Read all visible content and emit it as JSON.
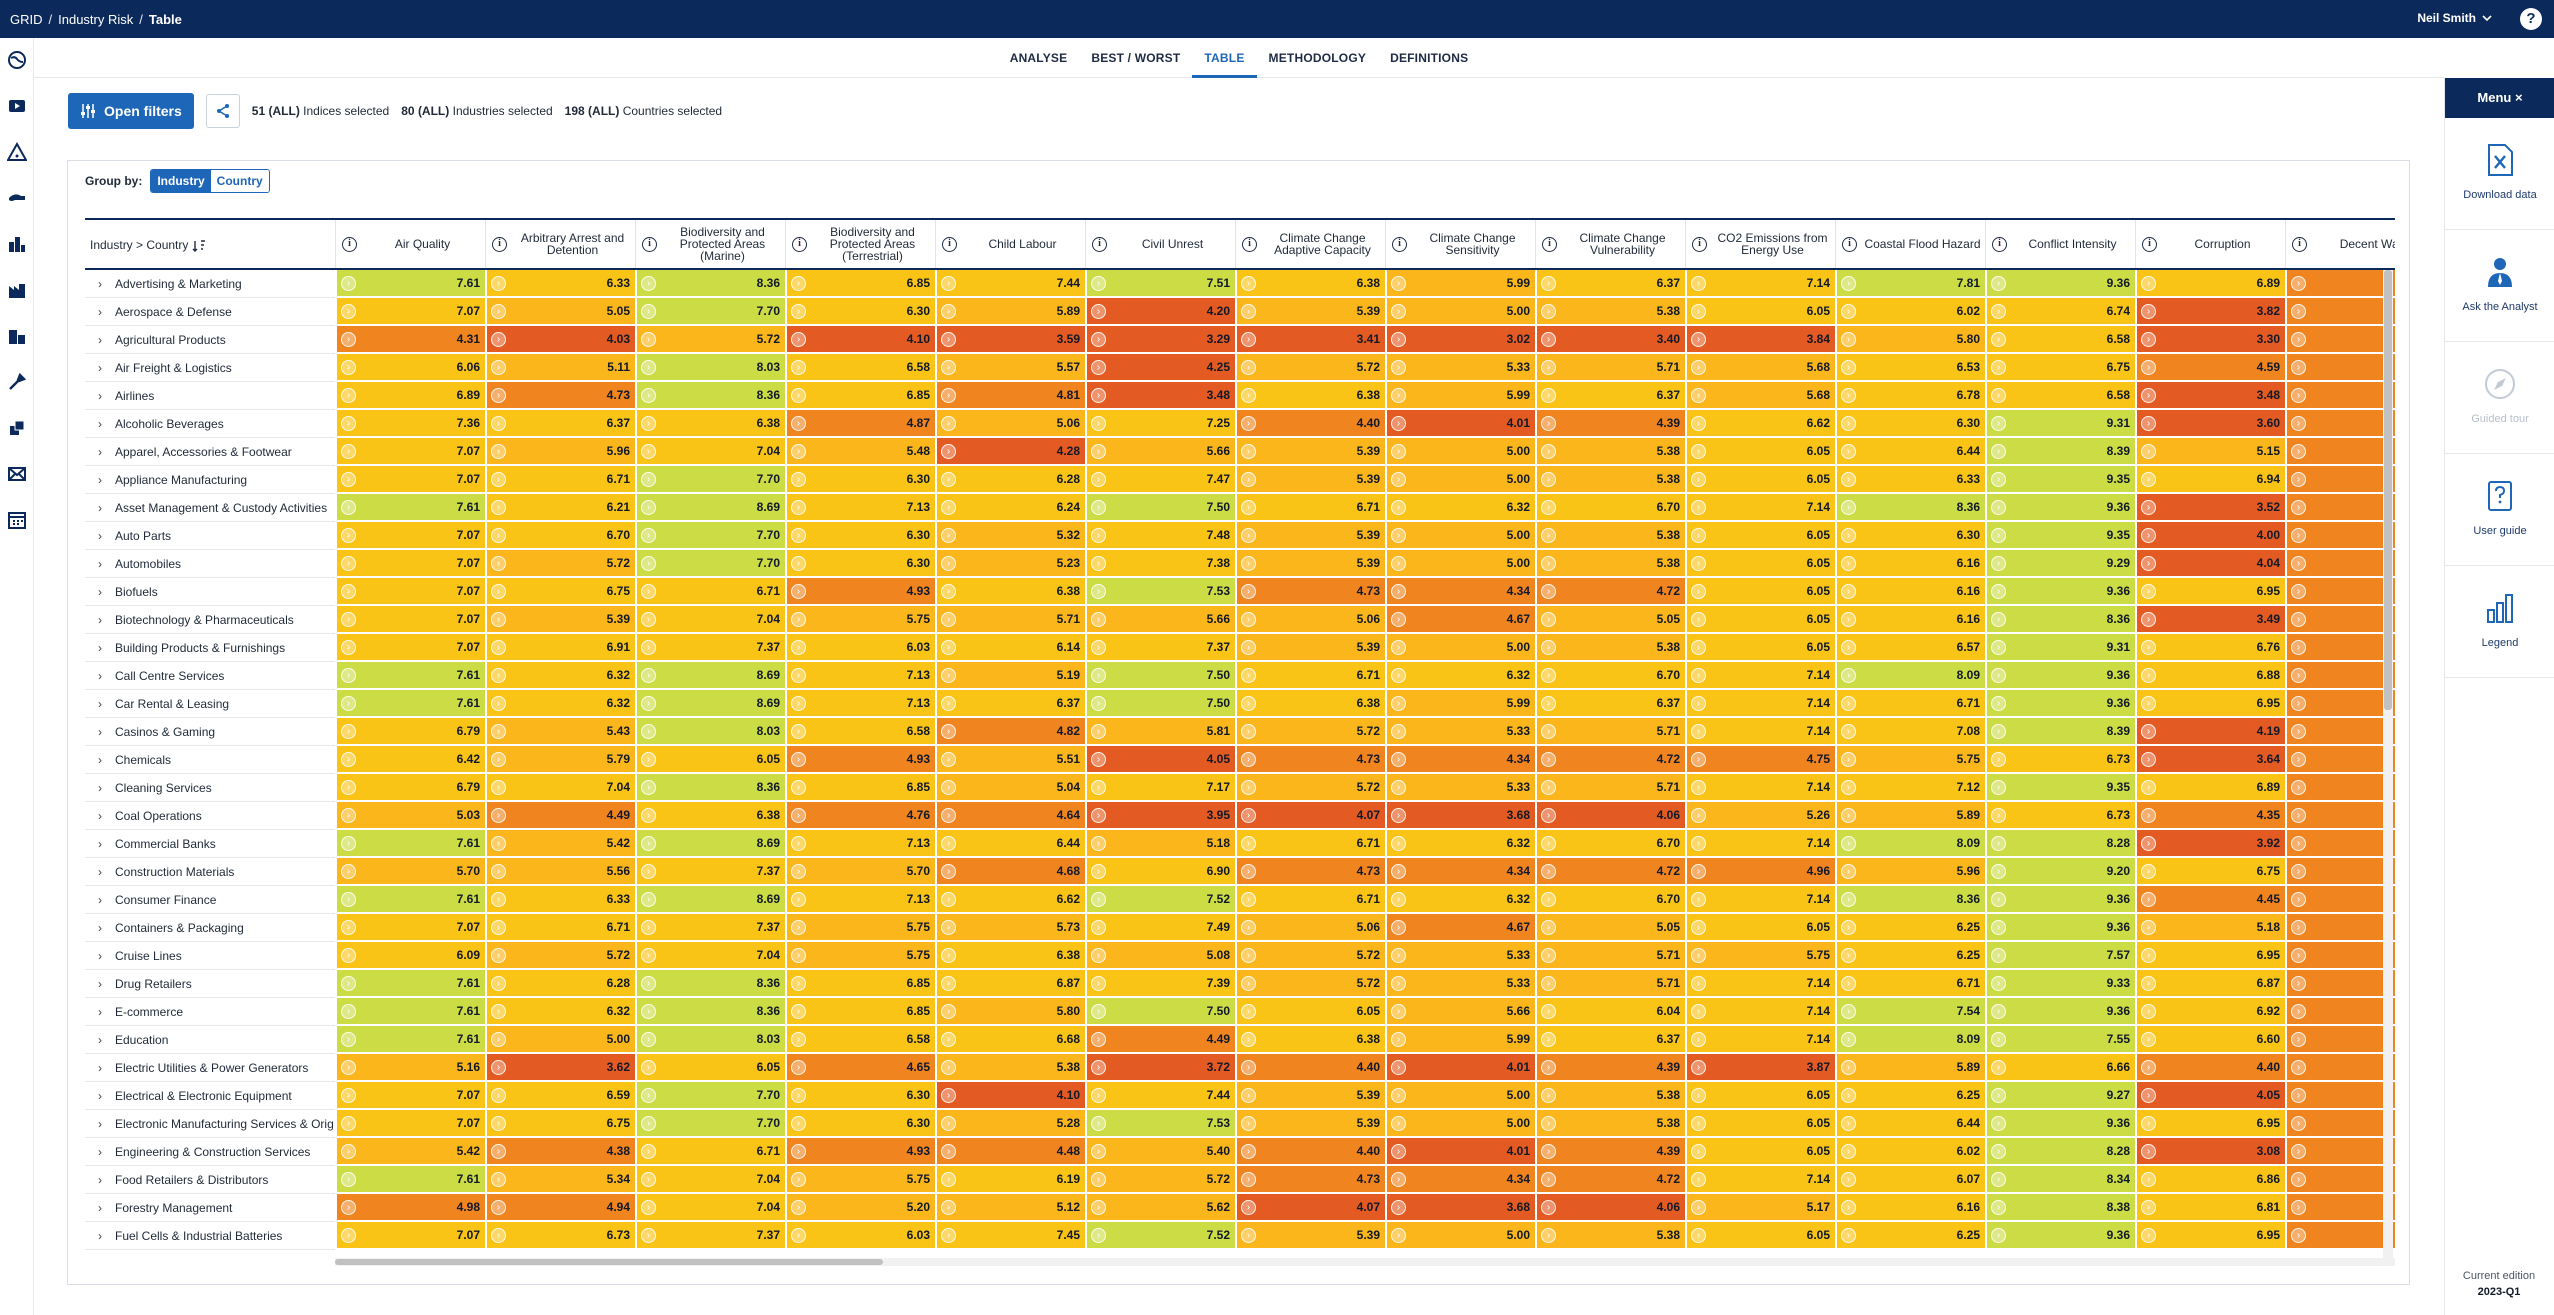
{
  "breadcrumbs": [
    "GRID",
    "Industry Risk",
    "Table"
  ],
  "user": {
    "name": "Neil Smith"
  },
  "tabs": [
    {
      "label": "ANALYSE",
      "active": false
    },
    {
      "label": "BEST / WORST",
      "active": false
    },
    {
      "label": "TABLE",
      "active": true
    },
    {
      "label": "METHODOLOGY",
      "active": false
    },
    {
      "label": "DEFINITIONS",
      "active": false
    }
  ],
  "filters": {
    "open_label": "Open filters",
    "indices": {
      "count": "51",
      "all": "(ALL)",
      "label": "Indices selected"
    },
    "industries": {
      "count": "80",
      "all": "(ALL)",
      "label": "Industries selected"
    },
    "countries": {
      "count": "198",
      "all": "(ALL)",
      "label": "Countries selected"
    }
  },
  "group_by": {
    "label": "Group by:",
    "options": [
      "Industry",
      "Country"
    ],
    "selected": "Industry"
  },
  "table": {
    "first_header": "Industry > Country",
    "columns": [
      "Air Quality",
      "Arbitrary Arrest and Detention",
      "Biodiversity and Protected Areas (Marine)",
      "Biodiversity and Protected Areas (Terrestrial)",
      "Child Labour",
      "Civil Unrest",
      "Climate Change Adaptive Capacity",
      "Climate Change Sensitivity",
      "Climate Change Vulnerability",
      "CO2 Emissions from Energy Use",
      "Coastal Flood Hazard",
      "Conflict Intensity",
      "Corruption",
      "Decent Wag"
    ],
    "rows": [
      {
        "name": "Advertising & Marketing",
        "values": [
          "7.61",
          "6.33",
          "8.36",
          "6.85",
          "7.44",
          "7.51",
          "6.38",
          "5.99",
          "6.37",
          "7.14",
          "7.81",
          "9.36",
          "6.89",
          ""
        ]
      },
      {
        "name": "Aerospace & Defense",
        "values": [
          "7.07",
          "5.05",
          "7.70",
          "6.30",
          "5.89",
          "4.20",
          "5.39",
          "5.00",
          "5.38",
          "6.05",
          "6.02",
          "6.74",
          "3.82",
          ""
        ]
      },
      {
        "name": "Agricultural Products",
        "values": [
          "4.31",
          "4.03",
          "5.72",
          "4.10",
          "3.59",
          "3.29",
          "3.41",
          "3.02",
          "3.40",
          "3.84",
          "5.80",
          "6.58",
          "3.30",
          ""
        ]
      },
      {
        "name": "Air Freight & Logistics",
        "values": [
          "6.06",
          "5.11",
          "8.03",
          "6.58",
          "5.57",
          "4.25",
          "5.72",
          "5.33",
          "5.71",
          "5.68",
          "6.53",
          "6.75",
          "4.59",
          ""
        ]
      },
      {
        "name": "Airlines",
        "values": [
          "6.89",
          "4.73",
          "8.36",
          "6.85",
          "4.81",
          "3.48",
          "6.38",
          "5.99",
          "6.37",
          "5.68",
          "6.78",
          "6.58",
          "3.48",
          ""
        ]
      },
      {
        "name": "Alcoholic Beverages",
        "values": [
          "7.36",
          "6.37",
          "6.38",
          "4.87",
          "5.06",
          "7.25",
          "4.40",
          "4.01",
          "4.39",
          "6.62",
          "6.30",
          "9.31",
          "3.60",
          ""
        ]
      },
      {
        "name": "Apparel, Accessories & Footwear",
        "values": [
          "7.07",
          "5.96",
          "7.04",
          "5.48",
          "4.28",
          "5.66",
          "5.39",
          "5.00",
          "5.38",
          "6.05",
          "6.44",
          "8.39",
          "5.15",
          ""
        ]
      },
      {
        "name": "Appliance Manufacturing",
        "values": [
          "7.07",
          "6.71",
          "7.70",
          "6.30",
          "6.28",
          "7.47",
          "5.39",
          "5.00",
          "5.38",
          "6.05",
          "6.33",
          "9.35",
          "6.94",
          ""
        ]
      },
      {
        "name": "Asset Management & Custody Activities",
        "values": [
          "7.61",
          "6.21",
          "8.69",
          "7.13",
          "6.24",
          "7.50",
          "6.71",
          "6.32",
          "6.70",
          "7.14",
          "8.36",
          "9.36",
          "3.52",
          ""
        ]
      },
      {
        "name": "Auto Parts",
        "values": [
          "7.07",
          "6.70",
          "7.70",
          "6.30",
          "5.32",
          "7.48",
          "5.39",
          "5.00",
          "5.38",
          "6.05",
          "6.30",
          "9.35",
          "4.00",
          ""
        ]
      },
      {
        "name": "Automobiles",
        "values": [
          "7.07",
          "5.72",
          "7.70",
          "6.30",
          "5.23",
          "7.38",
          "5.39",
          "5.00",
          "5.38",
          "6.05",
          "6.16",
          "9.29",
          "4.04",
          ""
        ]
      },
      {
        "name": "Biofuels",
        "values": [
          "7.07",
          "6.75",
          "6.71",
          "4.93",
          "6.38",
          "7.53",
          "4.73",
          "4.34",
          "4.72",
          "6.05",
          "6.16",
          "9.36",
          "6.95",
          ""
        ]
      },
      {
        "name": "Biotechnology & Pharmaceuticals",
        "values": [
          "7.07",
          "5.39",
          "7.04",
          "5.75",
          "5.71",
          "5.66",
          "5.06",
          "4.67",
          "5.05",
          "6.05",
          "6.16",
          "8.36",
          "3.49",
          ""
        ]
      },
      {
        "name": "Building Products & Furnishings",
        "values": [
          "7.07",
          "6.91",
          "7.37",
          "6.03",
          "6.14",
          "7.37",
          "5.39",
          "5.00",
          "5.38",
          "6.05",
          "6.57",
          "9.31",
          "6.76",
          ""
        ]
      },
      {
        "name": "Call Centre Services",
        "values": [
          "7.61",
          "6.32",
          "8.69",
          "7.13",
          "5.19",
          "7.50",
          "6.71",
          "6.32",
          "6.70",
          "7.14",
          "8.09",
          "9.36",
          "6.88",
          ""
        ]
      },
      {
        "name": "Car Rental & Leasing",
        "values": [
          "7.61",
          "6.32",
          "8.69",
          "7.13",
          "6.37",
          "7.50",
          "6.38",
          "5.99",
          "6.37",
          "7.14",
          "6.71",
          "9.36",
          "6.95",
          ""
        ]
      },
      {
        "name": "Casinos & Gaming",
        "values": [
          "6.79",
          "5.43",
          "8.03",
          "6.58",
          "4.82",
          "5.81",
          "5.72",
          "5.33",
          "5.71",
          "7.14",
          "7.08",
          "8.39",
          "4.19",
          ""
        ]
      },
      {
        "name": "Chemicals",
        "values": [
          "6.42",
          "5.79",
          "6.05",
          "4.93",
          "5.51",
          "4.05",
          "4.73",
          "4.34",
          "4.72",
          "4.75",
          "5.75",
          "6.73",
          "3.64",
          ""
        ]
      },
      {
        "name": "Cleaning Services",
        "values": [
          "6.79",
          "7.04",
          "8.36",
          "6.85",
          "5.04",
          "7.17",
          "5.72",
          "5.33",
          "5.71",
          "7.14",
          "7.12",
          "9.35",
          "6.89",
          ""
        ]
      },
      {
        "name": "Coal Operations",
        "values": [
          "5.03",
          "4.49",
          "6.38",
          "4.76",
          "4.64",
          "3.95",
          "4.07",
          "3.68",
          "4.06",
          "5.26",
          "5.89",
          "6.73",
          "4.35",
          ""
        ]
      },
      {
        "name": "Commercial Banks",
        "values": [
          "7.61",
          "5.42",
          "8.69",
          "7.13",
          "6.44",
          "5.18",
          "6.71",
          "6.32",
          "6.70",
          "7.14",
          "8.09",
          "8.28",
          "3.92",
          ""
        ]
      },
      {
        "name": "Construction Materials",
        "values": [
          "5.70",
          "5.56",
          "7.37",
          "5.70",
          "4.68",
          "6.90",
          "4.73",
          "4.34",
          "4.72",
          "4.96",
          "5.96",
          "9.20",
          "6.75",
          ""
        ]
      },
      {
        "name": "Consumer Finance",
        "values": [
          "7.61",
          "6.33",
          "8.69",
          "7.13",
          "6.62",
          "7.52",
          "6.71",
          "6.32",
          "6.70",
          "7.14",
          "8.36",
          "9.36",
          "4.45",
          ""
        ]
      },
      {
        "name": "Containers & Packaging",
        "values": [
          "7.07",
          "6.71",
          "7.37",
          "5.75",
          "5.73",
          "7.49",
          "5.06",
          "4.67",
          "5.05",
          "6.05",
          "6.25",
          "9.36",
          "5.18",
          ""
        ]
      },
      {
        "name": "Cruise Lines",
        "values": [
          "6.09",
          "5.72",
          "7.04",
          "5.75",
          "6.38",
          "5.08",
          "5.72",
          "5.33",
          "5.71",
          "5.75",
          "6.25",
          "7.57",
          "6.95",
          ""
        ]
      },
      {
        "name": "Drug Retailers",
        "values": [
          "7.61",
          "6.28",
          "8.36",
          "6.85",
          "6.87",
          "7.39",
          "5.72",
          "5.33",
          "5.71",
          "7.14",
          "6.71",
          "9.33",
          "6.87",
          ""
        ]
      },
      {
        "name": "E-commerce",
        "values": [
          "7.61",
          "6.32",
          "8.36",
          "6.85",
          "5.80",
          "7.50",
          "6.05",
          "5.66",
          "6.04",
          "7.14",
          "7.54",
          "9.36",
          "6.92",
          ""
        ]
      },
      {
        "name": "Education",
        "values": [
          "7.61",
          "5.00",
          "8.03",
          "6.58",
          "6.68",
          "4.49",
          "6.38",
          "5.99",
          "6.37",
          "7.14",
          "8.09",
          "7.55",
          "6.60",
          ""
        ]
      },
      {
        "name": "Electric Utilities & Power Generators",
        "values": [
          "5.16",
          "3.62",
          "6.05",
          "4.65",
          "5.38",
          "3.72",
          "4.40",
          "4.01",
          "4.39",
          "3.87",
          "5.89",
          "6.66",
          "4.40",
          ""
        ]
      },
      {
        "name": "Electrical & Electronic Equipment",
        "values": [
          "7.07",
          "6.59",
          "7.70",
          "6.30",
          "4.10",
          "7.44",
          "5.39",
          "5.00",
          "5.38",
          "6.05",
          "6.25",
          "9.27",
          "4.05",
          ""
        ]
      },
      {
        "name": "Electronic Manufacturing Services & Orig",
        "values": [
          "7.07",
          "6.75",
          "7.70",
          "6.30",
          "5.28",
          "7.53",
          "5.39",
          "5.00",
          "5.38",
          "6.05",
          "6.44",
          "9.36",
          "6.95",
          ""
        ]
      },
      {
        "name": "Engineering & Construction Services",
        "values": [
          "5.42",
          "4.38",
          "6.71",
          "4.93",
          "4.48",
          "5.40",
          "4.40",
          "4.01",
          "4.39",
          "6.05",
          "6.02",
          "8.28",
          "3.08",
          ""
        ]
      },
      {
        "name": "Food Retailers & Distributors",
        "values": [
          "7.61",
          "5.34",
          "7.04",
          "5.75",
          "6.19",
          "5.72",
          "4.73",
          "4.34",
          "4.72",
          "7.14",
          "6.07",
          "8.34",
          "6.86",
          ""
        ]
      },
      {
        "name": "Forestry Management",
        "values": [
          "4.98",
          "4.94",
          "7.04",
          "5.20",
          "5.12",
          "5.62",
          "4.07",
          "3.68",
          "4.06",
          "5.17",
          "6.16",
          "8.38",
          "6.81",
          ""
        ]
      },
      {
        "name": "Fuel Cells & Industrial Batteries",
        "values": [
          "7.07",
          "6.73",
          "7.37",
          "6.03",
          "7.45",
          "7.52",
          "5.39",
          "5.00",
          "5.38",
          "6.05",
          "6.25",
          "9.36",
          "6.95",
          ""
        ]
      }
    ]
  },
  "right_menu": {
    "header": "Menu ×",
    "items": [
      "Download data",
      "Ask the Analyst",
      "Guided tour",
      "User guide",
      "Legend"
    ]
  },
  "edition": {
    "label": "Current edition",
    "value": "2023-Q1"
  },
  "colors": {
    "navy": "#0b2a5b",
    "accent": "#1e66b8",
    "score_red": "#e35b22",
    "score_orange": "#f0841f",
    "score_amber": "#fbb61b",
    "score_yellow": "#f9c416",
    "score_green": "#cbdc45"
  }
}
